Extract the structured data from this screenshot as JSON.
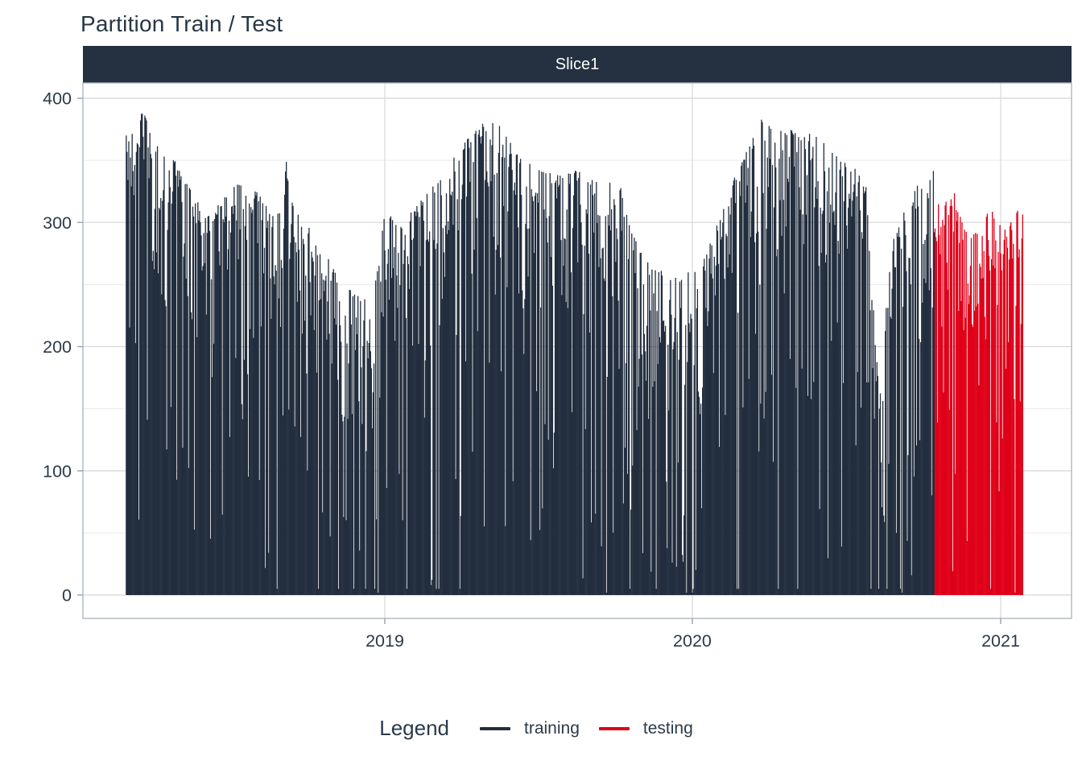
{
  "title": "Partition Train / Test",
  "facet": {
    "label": "Slice1"
  },
  "colors": {
    "training": "#222e3e",
    "testing": "#df0019",
    "strip_bg": "#253141",
    "strip_text": "#ffffff",
    "title_text": "#273645",
    "axis_text": "#2b3a4a",
    "grid_major": "#d8d8d8",
    "grid_minor": "#eaeaea",
    "panel_border": "#a8b2ba",
    "tick": "#99a1a8",
    "background": "#ffffff"
  },
  "legend": {
    "title": "Legend",
    "items": [
      {
        "label": "training",
        "series": "training"
      },
      {
        "label": "testing",
        "series": "testing"
      }
    ]
  },
  "chart_data": {
    "type": "bar",
    "title": "Partition Train / Test",
    "facet_label": "Slice1",
    "xlabel": "",
    "ylabel": "",
    "x_ticks": [
      "2019",
      "2020",
      "2021"
    ],
    "y_ticks": [
      0,
      100,
      200,
      300,
      400
    ],
    "y_minor_ticks": [
      50,
      150,
      250,
      350
    ],
    "ylim": [
      0,
      412
    ],
    "grid": true,
    "legend_position": "bottom",
    "date_start": "2018-02-28",
    "date_end": "2021-01-27",
    "train_test_split_date": "2020-10-15",
    "series_names": [
      "training",
      "testing"
    ],
    "envelope_keypoints": [
      [
        "2018-02-28",
        370
      ],
      [
        "2018-03-08",
        372
      ],
      [
        "2018-03-20",
        392
      ],
      [
        "2018-04-04",
        362
      ],
      [
        "2018-04-18",
        366
      ],
      [
        "2018-05-04",
        338
      ],
      [
        "2018-05-20",
        322
      ],
      [
        "2018-06-06",
        306
      ],
      [
        "2018-06-22",
        318
      ],
      [
        "2018-07-08",
        330
      ],
      [
        "2018-07-24",
        334
      ],
      [
        "2018-08-09",
        318
      ],
      [
        "2018-08-24",
        302
      ],
      [
        "2018-09-08",
        356
      ],
      [
        "2018-09-17",
        310
      ],
      [
        "2018-10-02",
        298
      ],
      [
        "2018-10-18",
        280
      ],
      [
        "2018-11-04",
        260
      ],
      [
        "2018-11-20",
        246
      ],
      [
        "2018-12-06",
        238
      ],
      [
        "2018-12-20",
        252
      ],
      [
        "2019-01-02",
        312
      ],
      [
        "2019-01-16",
        296
      ],
      [
        "2019-02-01",
        308
      ],
      [
        "2019-02-18",
        322
      ],
      [
        "2019-03-08",
        338
      ],
      [
        "2019-03-26",
        354
      ],
      [
        "2019-04-12",
        370
      ],
      [
        "2019-04-28",
        380
      ],
      [
        "2019-05-12",
        383
      ],
      [
        "2019-05-28",
        366
      ],
      [
        "2019-06-12",
        354
      ],
      [
        "2019-06-28",
        346
      ],
      [
        "2019-07-14",
        340
      ],
      [
        "2019-07-30",
        338
      ],
      [
        "2019-08-16",
        342
      ],
      [
        "2019-09-02",
        336
      ],
      [
        "2019-09-18",
        330
      ],
      [
        "2019-10-04",
        340
      ],
      [
        "2019-10-18",
        298
      ],
      [
        "2019-11-02",
        274
      ],
      [
        "2019-11-18",
        264
      ],
      [
        "2019-12-04",
        258
      ],
      [
        "2019-12-20",
        256
      ],
      [
        "2020-01-04",
        266
      ],
      [
        "2020-01-20",
        280
      ],
      [
        "2020-02-05",
        308
      ],
      [
        "2020-02-21",
        338
      ],
      [
        "2020-03-08",
        364
      ],
      [
        "2020-03-24",
        384
      ],
      [
        "2020-04-08",
        372
      ],
      [
        "2020-04-24",
        376
      ],
      [
        "2020-05-10",
        368
      ],
      [
        "2020-05-26",
        374
      ],
      [
        "2020-06-11",
        358
      ],
      [
        "2020-06-27",
        350
      ],
      [
        "2020-07-13",
        344
      ],
      [
        "2020-07-27",
        326
      ],
      [
        "2020-08-05",
        210
      ],
      [
        "2020-08-13",
        152
      ],
      [
        "2020-08-21",
        280
      ],
      [
        "2020-08-31",
        292
      ],
      [
        "2020-09-08",
        308
      ],
      [
        "2020-09-16",
        320
      ],
      [
        "2020-09-26",
        332
      ],
      [
        "2020-10-06",
        338
      ],
      [
        "2020-10-14",
        344
      ],
      [
        "2020-10-16",
        324
      ],
      [
        "2020-10-26",
        320
      ],
      [
        "2020-11-05",
        330
      ],
      [
        "2020-11-15",
        302
      ],
      [
        "2020-11-25",
        286
      ],
      [
        "2020-12-05",
        296
      ],
      [
        "2020-12-15",
        306
      ],
      [
        "2020-12-25",
        316
      ],
      [
        "2021-01-04",
        306
      ],
      [
        "2021-01-14",
        300
      ],
      [
        "2021-01-21",
        312
      ],
      [
        "2021-01-27",
        332
      ]
    ],
    "zero_days": [
      "2018-12-24",
      "2019-09-21",
      "2019-12-25",
      "2020-01-01",
      "2020-09-06",
      "2021-01-18"
    ],
    "generation": {
      "seed": 7,
      "jitter": 62,
      "sunday_dip_prob": 0.85,
      "sunday_dip_min": 50,
      "sunday_dip_extra": 190,
      "spike_prob": 0.08,
      "spike_min": 100,
      "spike_extra": 230,
      "minor_dip_prob": 0.22,
      "minor_dip_min": 20,
      "minor_dip_extra": 70,
      "min_value": 5,
      "zero_value": 2
    }
  }
}
